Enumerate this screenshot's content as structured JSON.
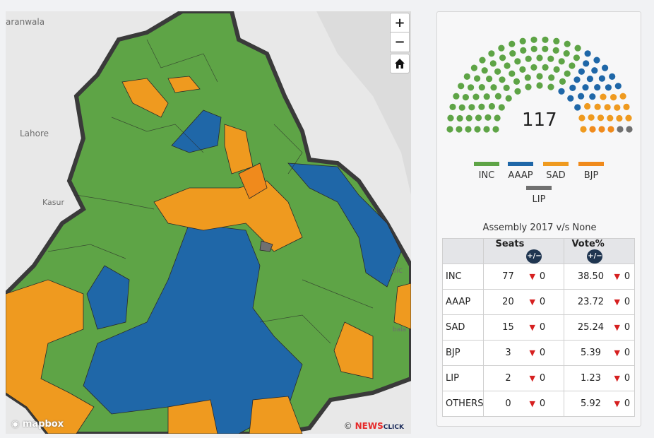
{
  "map": {
    "places": [
      "aranwala",
      "Lahore",
      "Kasur",
      "dic",
      "bala"
    ],
    "zoom_in": "+",
    "zoom_out": "−",
    "attribution": "mapbox",
    "credit_prefix": "©",
    "credit_brand": "NEWS",
    "credit_suffix": "CLICK",
    "colors": {
      "INC": "#5ea446",
      "AAAP": "#1f67a8",
      "SAD": "#ef9a1f",
      "BJP": "#f08a1c",
      "LIP": "#707070"
    }
  },
  "panel": {
    "total_seats": "117",
    "legend": [
      {
        "label": "INC",
        "color": "#5ea446"
      },
      {
        "label": "AAAP",
        "color": "#1f67a8"
      },
      {
        "label": "SAD",
        "color": "#ef9a1f"
      },
      {
        "label": "BJP",
        "color": "#f08a1c"
      },
      {
        "label": "LIP",
        "color": "#707070"
      }
    ],
    "table_title": "Assembly 2017 v/s None",
    "headers": {
      "seats": "Seats",
      "vote": "Vote%",
      "toggle": "+/−"
    },
    "rows": [
      {
        "party": "INC",
        "seats": "77",
        "seats_change": "0",
        "vote": "38.50",
        "vote_change": "0"
      },
      {
        "party": "AAAP",
        "seats": "20",
        "seats_change": "0",
        "vote": "23.72",
        "vote_change": "0"
      },
      {
        "party": "SAD",
        "seats": "15",
        "seats_change": "0",
        "vote": "25.24",
        "vote_change": "0"
      },
      {
        "party": "BJP",
        "seats": "3",
        "seats_change": "0",
        "vote": "5.39",
        "vote_change": "0"
      },
      {
        "party": "LIP",
        "seats": "2",
        "seats_change": "0",
        "vote": "1.23",
        "vote_change": "0"
      },
      {
        "party": "OTHERS",
        "seats": "0",
        "seats_change": "0",
        "vote": "5.92",
        "vote_change": "0"
      }
    ]
  }
}
